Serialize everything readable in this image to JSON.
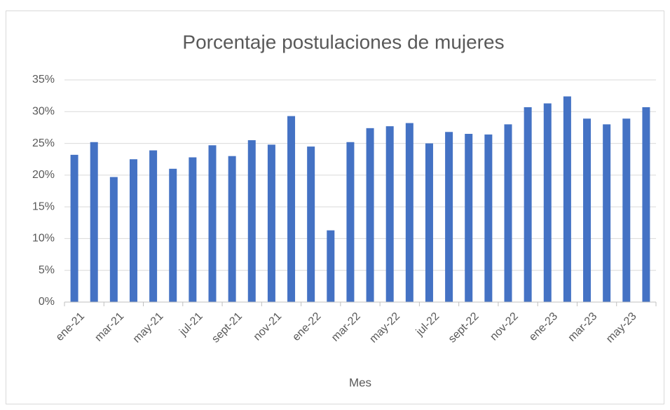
{
  "chart_data": {
    "type": "bar",
    "title": "Porcentaje postulaciones de mujeres",
    "x_label": "Mes",
    "categories": [
      "ene-21",
      null,
      "mar-21",
      null,
      "may-21",
      null,
      "jul-21",
      null,
      "sept-21",
      null,
      "nov-21",
      null,
      "ene-22",
      null,
      "mar-22",
      null,
      "may-22",
      null,
      "jul-22",
      null,
      "sept-22",
      null,
      "nov-22",
      null,
      "ene-23",
      null,
      "mar-23",
      null,
      "may-23",
      null
    ],
    "values": [
      23.2,
      25.2,
      19.7,
      22.5,
      23.9,
      21.0,
      22.8,
      24.7,
      23.0,
      25.5,
      24.8,
      29.3,
      24.5,
      11.3,
      25.2,
      27.4,
      27.7,
      28.2,
      25.0,
      26.8,
      26.5,
      26.4,
      28.0,
      30.7,
      31.3,
      32.4,
      28.9,
      28.0,
      28.9,
      30.7
    ],
    "color": "#4472c4",
    "ylim": [
      0,
      35
    ],
    "yticks": [
      {
        "value": 0,
        "label": "0%"
      },
      {
        "value": 5,
        "label": "5%"
      },
      {
        "value": 10,
        "label": "10%"
      },
      {
        "value": 15,
        "label": "15%"
      },
      {
        "value": 20,
        "label": "20%"
      },
      {
        "value": 25,
        "label": "25%"
      },
      {
        "value": 30,
        "label": "30%"
      },
      {
        "value": 35,
        "label": "35%"
      }
    ],
    "grid": true
  }
}
